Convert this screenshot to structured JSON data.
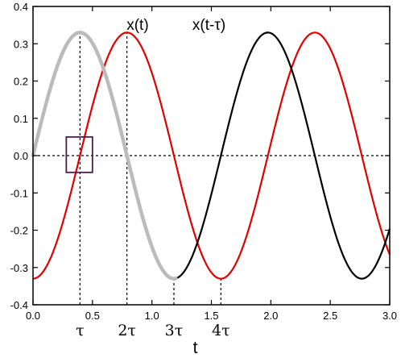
{
  "chart_data": {
    "type": "line",
    "title": "",
    "xlabel": "t",
    "ylabel": "",
    "xlim": [
      0.0,
      3.0
    ],
    "ylim": [
      -0.4,
      0.4
    ],
    "x_ticks": [
      "0.0",
      "0.5",
      "1.0",
      "1.5",
      "2.0",
      "2.5",
      "3.0"
    ],
    "y_ticks": [
      "0.4",
      "0.3",
      "0.2",
      "0.1",
      "0.0",
      "-0.1",
      "-0.2",
      "-0.3",
      "-0.4"
    ],
    "grid": false,
    "series": [
      {
        "name": "x(t)",
        "color": "#000000",
        "function": "0.33*sin(2*pi*t/1.58)",
        "x": [
          0.0,
          0.2,
          0.4,
          0.6,
          0.8,
          1.0,
          1.2,
          1.4,
          1.6,
          1.8,
          2.0,
          2.2,
          2.4,
          2.6,
          2.8,
          3.0
        ],
        "y": [
          0.0,
          0.24,
          0.33,
          0.22,
          -0.02,
          -0.25,
          -0.33,
          -0.21,
          0.02,
          0.26,
          0.33,
          0.2,
          -0.04,
          -0.26,
          -0.33,
          -0.19
        ]
      },
      {
        "name": "x(t-τ)",
        "color": "#e00000",
        "function": "0.33*sin(2*pi*(t-0.395)/1.58)",
        "x": [
          0.0,
          0.2,
          0.4,
          0.6,
          0.8,
          1.0,
          1.2,
          1.4,
          1.6,
          1.8,
          2.0,
          2.2,
          2.4,
          2.6,
          2.8,
          3.0
        ],
        "y": [
          -0.33,
          -0.21,
          0.0,
          0.25,
          0.33,
          0.23,
          -0.02,
          -0.25,
          -0.33,
          -0.21,
          0.02,
          0.25,
          0.33,
          0.22,
          -0.02,
          -0.25
        ]
      },
      {
        "name": "highlight",
        "color": "#bbbbbb",
        "x_range": [
          0.0,
          1.2
        ],
        "follows": "x(t)"
      }
    ],
    "series_labels": [
      {
        "text": "x(t)",
        "x": 0.88,
        "y": 0.355
      },
      {
        "text": "x(t-τ)",
        "x": 1.48,
        "y": 0.355
      }
    ],
    "reference_lines": [
      {
        "type": "horizontal",
        "y": 0.0,
        "style": "dashed"
      },
      {
        "type": "vertical",
        "x": 0.395,
        "from": -0.4,
        "to": 0.33,
        "style": "dashed"
      },
      {
        "type": "vertical",
        "x": 0.79,
        "from": -0.4,
        "to": 0.33,
        "style": "dashed"
      },
      {
        "type": "vertical",
        "x": 1.185,
        "from": -0.4,
        "to": -0.33,
        "style": "dashed"
      },
      {
        "type": "vertical",
        "x": 1.58,
        "from": -0.4,
        "to": -0.33,
        "style": "dashed"
      }
    ],
    "tau_markers": [
      {
        "label": "τ",
        "x": 0.395
      },
      {
        "label": "2τ",
        "x": 0.79
      },
      {
        "label": "3τ",
        "x": 1.185
      },
      {
        "label": "4τ",
        "x": 1.58
      }
    ],
    "annotation_box": {
      "color": "#4a1c4a",
      "x": [
        0.28,
        0.5
      ],
      "y": [
        -0.045,
        0.05
      ]
    }
  }
}
